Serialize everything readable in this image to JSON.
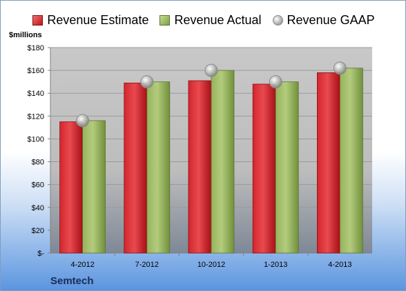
{
  "legend": {
    "estimate_label": "Revenue Estimate",
    "actual_label": "Revenue Actual",
    "gaap_label": "Revenue GAAP"
  },
  "unit_label": "$millions",
  "company": "Semtech",
  "colors": {
    "estimate": "#c81a22",
    "actual": "#8aa84f",
    "gaap": "#b8b8b8"
  },
  "chart_data": {
    "type": "bar",
    "title": "",
    "xlabel": "",
    "ylabel": "$millions",
    "ylim": [
      0,
      180
    ],
    "y_ticks": [
      0,
      20,
      40,
      60,
      80,
      100,
      120,
      140,
      160,
      180
    ],
    "y_tick_labels": [
      "$-",
      "$20",
      "$40",
      "$60",
      "$80",
      "$100",
      "$120",
      "$140",
      "$160",
      "$180"
    ],
    "categories": [
      "4-2012",
      "7-2012",
      "10-2012",
      "1-2013",
      "4-2013"
    ],
    "series": [
      {
        "name": "Revenue Estimate",
        "type": "bar",
        "values": [
          115,
          149,
          151,
          148,
          158
        ]
      },
      {
        "name": "Revenue Actual",
        "type": "bar",
        "values": [
          116,
          150,
          160,
          150,
          162
        ]
      },
      {
        "name": "Revenue GAAP",
        "type": "marker",
        "values": [
          116,
          150,
          160,
          150,
          162
        ]
      }
    ],
    "grid": true,
    "legend_position": "top"
  }
}
